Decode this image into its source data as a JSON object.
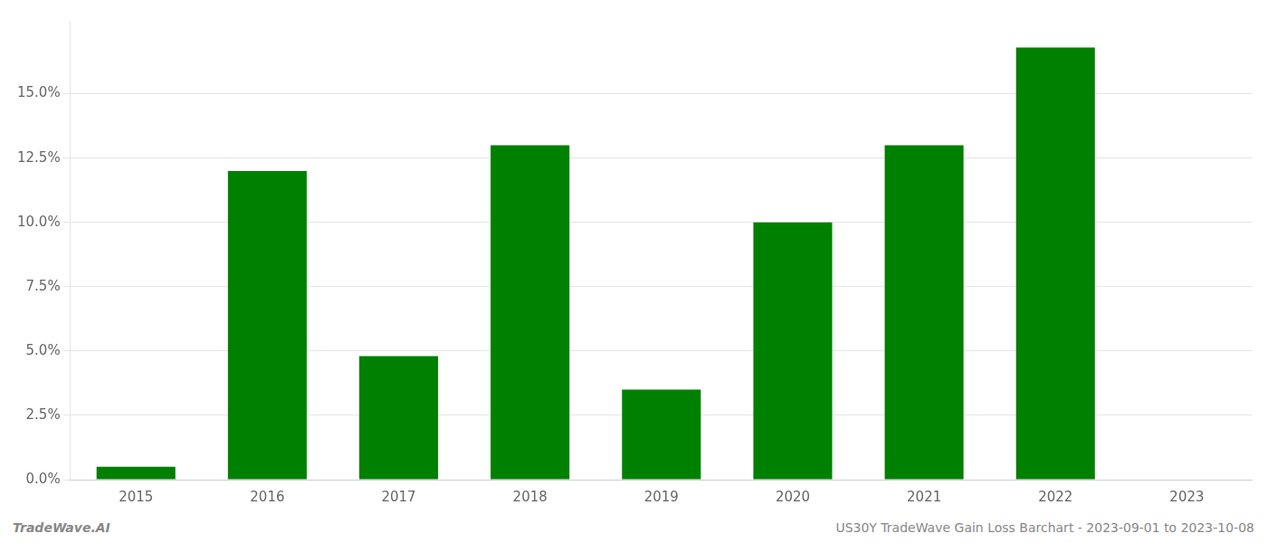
{
  "chart_data": {
    "type": "bar",
    "categories": [
      "2015",
      "2016",
      "2017",
      "2018",
      "2019",
      "2020",
      "2021",
      "2022",
      "2023"
    ],
    "values": [
      0.005,
      0.12,
      0.048,
      0.13,
      0.035,
      0.1,
      0.13,
      0.168,
      0.0
    ],
    "color": "#008000",
    "ylim": [
      0,
      0.178
    ],
    "yticks": [
      {
        "value": 0.0,
        "label": "0.0%"
      },
      {
        "value": 0.025,
        "label": "2.5%"
      },
      {
        "value": 0.05,
        "label": "5.0%"
      },
      {
        "value": 0.075,
        "label": "7.5%"
      },
      {
        "value": 0.1,
        "label": "10.0%"
      },
      {
        "value": 0.125,
        "label": "12.5%"
      },
      {
        "value": 0.15,
        "label": "15.0%"
      }
    ],
    "grid": true,
    "annotations": [
      "TradeWave.AI",
      "US30Y TradeWave Gain Loss Barchart - 2023-09-01 to 2023-10-08"
    ]
  }
}
